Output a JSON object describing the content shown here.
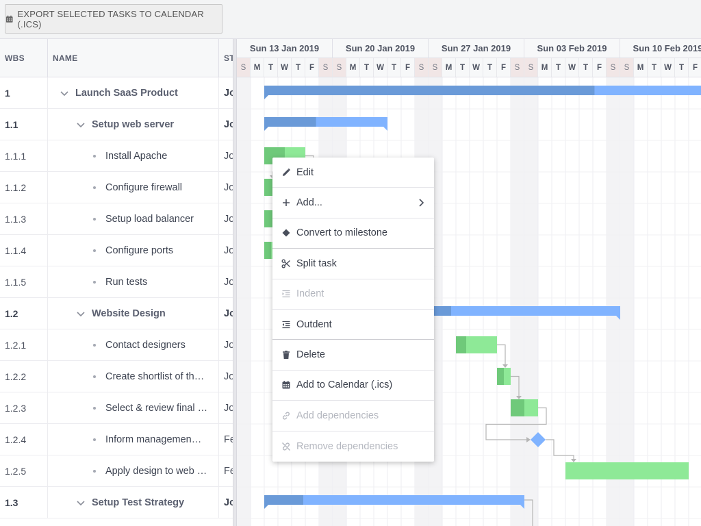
{
  "toolbar": {
    "export_label": "EXPORT SELECTED TASKS TO CALENDAR (.ICS)"
  },
  "grid": {
    "columns": {
      "wbs": "WBS",
      "name": "NAME",
      "start": "ST"
    },
    "rows": [
      {
        "wbs": "1",
        "name": "Launch SaaS Product",
        "start": "Jo",
        "level": 0,
        "parent": true
      },
      {
        "wbs": "1.1",
        "name": "Setup web server",
        "start": "Jo",
        "level": 1,
        "parent": true
      },
      {
        "wbs": "1.1.1",
        "name": "Install Apache",
        "start": "Jo",
        "level": 2,
        "parent": false
      },
      {
        "wbs": "1.1.2",
        "name": "Configure firewall",
        "start": "Jo",
        "level": 2,
        "parent": false
      },
      {
        "wbs": "1.1.3",
        "name": "Setup load balancer",
        "start": "Jo",
        "level": 2,
        "parent": false
      },
      {
        "wbs": "1.1.4",
        "name": "Configure ports",
        "start": "Jo",
        "level": 2,
        "parent": false
      },
      {
        "wbs": "1.1.5",
        "name": "Run tests",
        "start": "Jo",
        "level": 2,
        "parent": false
      },
      {
        "wbs": "1.2",
        "name": "Website Design",
        "start": "Jo",
        "level": 1,
        "parent": true
      },
      {
        "wbs": "1.2.1",
        "name": "Contact designers",
        "start": "Jo",
        "level": 2,
        "parent": false
      },
      {
        "wbs": "1.2.2",
        "name": "Create shortlist of th…",
        "start": "Jo",
        "level": 2,
        "parent": false
      },
      {
        "wbs": "1.2.3",
        "name": "Select & review final …",
        "start": "Jo",
        "level": 2,
        "parent": false
      },
      {
        "wbs": "1.2.4",
        "name": "Inform managemen…",
        "start": "Fe",
        "level": 2,
        "parent": false
      },
      {
        "wbs": "1.2.5",
        "name": "Apply design to web …",
        "start": "Fe",
        "level": 2,
        "parent": false
      },
      {
        "wbs": "1.3",
        "name": "Setup Test Strategy",
        "start": "Jo",
        "level": 1,
        "parent": true
      }
    ]
  },
  "timeline": {
    "weeks": [
      "Sun 13 Jan 2019",
      "Sun 20 Jan 2019",
      "Sun 27 Jan 2019",
      "Sun 03 Feb 2019",
      "Sun 10 Feb 2019"
    ],
    "days": [
      "S",
      "M",
      "T",
      "W",
      "T",
      "F",
      "S"
    ],
    "colors": {
      "parent_bar": "#80b3ff",
      "parent_progress": "#6a9ad8",
      "task_bar": "#8ee997",
      "task_progress": "#6fc97a",
      "milestone": "#80b3ff",
      "weekend": "#f3f3f5",
      "dependency": "#b5b5b5"
    },
    "tasks": [
      {
        "row": 0,
        "type": "parent",
        "start": "2019-01-14",
        "end": "2019-02-19",
        "progress": 0.67
      },
      {
        "row": 1,
        "type": "parent",
        "start": "2019-01-14",
        "end": "2019-01-23",
        "progress": 0.42
      },
      {
        "row": 2,
        "type": "task",
        "start": "2019-01-14",
        "end": "2019-01-17",
        "progress": 0.5
      },
      {
        "row": 3,
        "type": "task",
        "start": "2019-01-14",
        "end": "2019-01-16",
        "progress": 0.5
      },
      {
        "row": 4,
        "type": "task",
        "start": "2019-01-14",
        "end": "2019-01-16",
        "progress": 0.5
      },
      {
        "row": 5,
        "type": "task",
        "start": "2019-01-14",
        "end": "2019-01-15",
        "progress": 0.5
      },
      {
        "row": 7,
        "type": "parent",
        "start": "2019-01-21",
        "end": "2019-02-09",
        "progress": 0.35
      },
      {
        "row": 8,
        "type": "task",
        "start": "2019-01-28",
        "end": "2019-01-31",
        "progress": 0.25
      },
      {
        "row": 9,
        "type": "task",
        "start": "2019-01-31",
        "end": "2019-02-01",
        "progress": 0.5
      },
      {
        "row": 10,
        "type": "task",
        "start": "2019-02-01",
        "end": "2019-02-03",
        "progress": 0.5
      },
      {
        "row": 11,
        "type": "milestone",
        "start": "2019-02-03",
        "end": "2019-02-03",
        "progress": 0
      },
      {
        "row": 12,
        "type": "task",
        "start": "2019-02-05",
        "end": "2019-02-14",
        "progress": 0
      },
      {
        "row": 13,
        "type": "parent",
        "start": "2019-01-14",
        "end": "2019-02-02",
        "progress": 0.15
      }
    ],
    "dependencies": [
      {
        "from": 2,
        "to": 3
      },
      {
        "from": 8,
        "to": 9
      },
      {
        "from": 9,
        "to": 10
      },
      {
        "from": 10,
        "to": 11
      },
      {
        "from": 11,
        "to": 12
      },
      {
        "from": 13,
        "to": 14
      }
    ]
  },
  "context_menu": {
    "items": [
      {
        "label": "Edit",
        "icon": "pencil-icon",
        "disabled": false,
        "submenu": false,
        "sep": false
      },
      {
        "label": "Add...",
        "icon": "plus-icon",
        "disabled": false,
        "submenu": true,
        "sep": false
      },
      {
        "label": "Convert to milestone",
        "icon": "diamond-icon",
        "disabled": false,
        "submenu": false,
        "sep": true
      },
      {
        "label": "Split task",
        "icon": "scissors-icon",
        "disabled": false,
        "submenu": false,
        "sep": false
      },
      {
        "label": "Indent",
        "icon": "indent-icon",
        "disabled": true,
        "submenu": false,
        "sep": false
      },
      {
        "label": "Outdent",
        "icon": "outdent-icon",
        "disabled": false,
        "submenu": false,
        "sep": true
      },
      {
        "label": "Delete",
        "icon": "trash-icon",
        "disabled": false,
        "submenu": false,
        "sep": false
      },
      {
        "label": "Add to Calendar (.ics)",
        "icon": "calendar-icon",
        "disabled": false,
        "submenu": false,
        "sep": false
      },
      {
        "label": "Add dependencies",
        "icon": "link-icon",
        "disabled": true,
        "submenu": false,
        "sep": false
      },
      {
        "label": "Remove dependencies",
        "icon": "unlink-icon",
        "disabled": true,
        "submenu": false,
        "sep": false
      }
    ]
  }
}
